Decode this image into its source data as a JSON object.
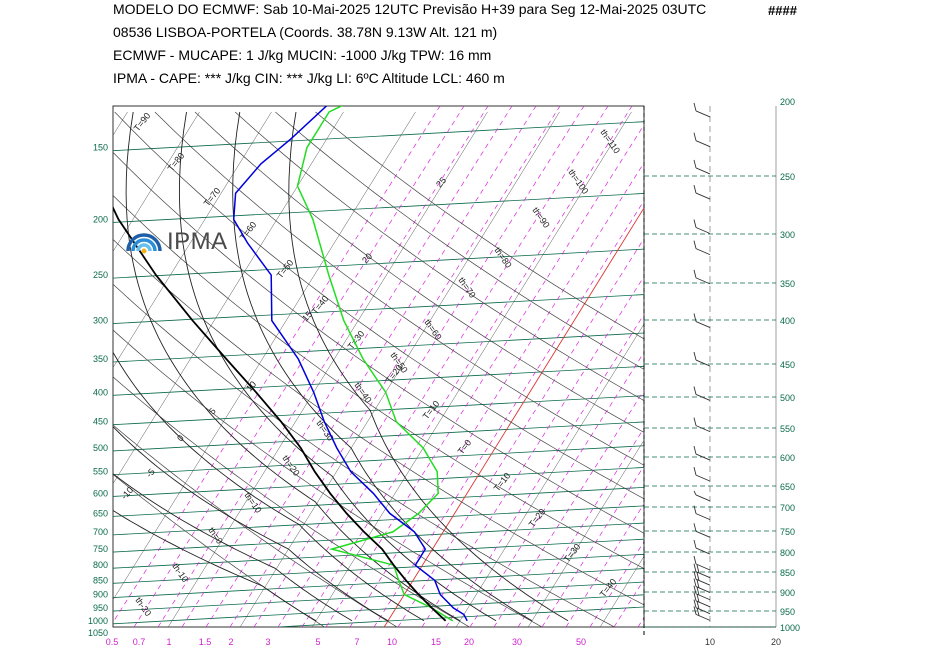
{
  "header": {
    "line1": "MODELO DO ECMWF:  Sab  10-Mai-2025 12UTC  Previsão H+39  para  Seg 12-Mai-2025 03UTC",
    "hash": "####",
    "line2": "08536   LISBOA-PORTELA  (Coords.  38.78N 9.13W   Alt. 121 m)",
    "line3": "ECMWF - MUCAPE: 1 J/kg   MUCIN: -1000 J/kg   TPW: 16 mm",
    "line4": "IPMA - CAPE: *** J/kg   CIN: *** J/kg   LI: 6ºC   Altitude LCL: 460 m"
  },
  "logo": {
    "text": "IPMA",
    "name": "ipma-logo"
  },
  "colors": {
    "isobar": "#0a6a4a",
    "temperature_profile": "#22dd22",
    "dewpoint_profile": "#0000dd",
    "parcel": "#000000",
    "mixing_ratio": "#dd22dd",
    "dry_adiabat": "#333333",
    "zero_isotherm": "#dd3333",
    "x_axis_labels": "#cc22cc",
    "y_axis_labels": "#0a6a4a"
  },
  "chart_data": {
    "type": "line",
    "title": "",
    "pressure_axis_left": [
      "150",
      "200",
      "250",
      "300",
      "350",
      "400",
      "450",
      "500",
      "550",
      "600",
      "650",
      "700",
      "750",
      "800",
      "850",
      "900",
      "950",
      "1000",
      "1050"
    ],
    "pressure_axis_right": [
      "200",
      "250",
      "300",
      "350",
      "400",
      "450",
      "500",
      "550",
      "600",
      "650",
      "700",
      "750",
      "800",
      "850",
      "900",
      "950",
      "1000"
    ],
    "mixing_ratio_axis": [
      "0.5",
      "0.7",
      "1",
      "1.5",
      "2",
      "3",
      "5",
      "7",
      "10",
      "15",
      "20",
      "30",
      "50"
    ],
    "wind_speed_axis": [
      "10",
      "20"
    ],
    "isotherm_labels": [
      "T=90",
      "T=80",
      "T=70",
      "T=60",
      "T=50",
      "T=40",
      "T=30",
      "T=20",
      "T=10",
      "T=0",
      "T=10",
      "T=20",
      "T=30",
      "T=40"
    ],
    "theta_labels": [
      "th=110",
      "th=100",
      "th=90",
      "th=80",
      "th=70",
      "th=60",
      "th=50",
      "th=40",
      "th=30",
      "th=20",
      "th=10",
      "th=0",
      "th-10",
      "th-20"
    ],
    "theta_e_labels": [
      "25",
      "20",
      "15",
      "10",
      "5",
      "0",
      "-5",
      "-10"
    ],
    "series": [
      {
        "name": "",
        "key": "temperature",
        "points": [
          [
            1000,
            9
          ],
          [
            975,
            7
          ],
          [
            950,
            5
          ],
          [
            900,
            0
          ],
          [
            850,
            -2
          ],
          [
            800,
            -4
          ],
          [
            750,
            -14
          ],
          [
            700,
            -7
          ],
          [
            650,
            -5
          ],
          [
            600,
            -4
          ],
          [
            550,
            -6
          ],
          [
            500,
            -10
          ],
          [
            450,
            -16
          ],
          [
            400,
            -20
          ],
          [
            350,
            -26
          ],
          [
            300,
            -32
          ],
          [
            250,
            -38
          ],
          [
            200,
            -45
          ],
          [
            175,
            -50
          ],
          [
            150,
            -52
          ],
          [
            130,
            -52
          ],
          [
            120,
            -48
          ]
        ]
      },
      {
        "name": "",
        "key": "dewpoint",
        "points": [
          [
            1000,
            11
          ],
          [
            975,
            10
          ],
          [
            950,
            8
          ],
          [
            900,
            5
          ],
          [
            850,
            3
          ],
          [
            800,
            -1
          ],
          [
            750,
            -1
          ],
          [
            700,
            -4
          ],
          [
            650,
            -9
          ],
          [
            600,
            -13
          ],
          [
            550,
            -18
          ],
          [
            500,
            -22
          ],
          [
            450,
            -26
          ],
          [
            400,
            -30
          ],
          [
            350,
            -35
          ],
          [
            300,
            -42
          ],
          [
            250,
            -46
          ],
          [
            220,
            -52
          ],
          [
            200,
            -56
          ],
          [
            180,
            -58
          ],
          [
            160,
            -57
          ],
          [
            145,
            -55
          ],
          [
            120,
            -52
          ]
        ]
      },
      {
        "name": "",
        "key": "parcel",
        "points": [
          [
            1000,
            8
          ],
          [
            950,
            5
          ],
          [
            900,
            2
          ],
          [
            850,
            -1
          ],
          [
            800,
            -4
          ],
          [
            750,
            -7
          ],
          [
            700,
            -11
          ],
          [
            650,
            -15
          ],
          [
            600,
            -19
          ],
          [
            550,
            -23
          ],
          [
            500,
            -27
          ],
          [
            450,
            -32
          ],
          [
            400,
            -38
          ],
          [
            350,
            -45
          ],
          [
            300,
            -53
          ],
          [
            250,
            -62
          ],
          [
            200,
            -72
          ],
          [
            180,
            -76
          ]
        ]
      }
    ],
    "wind_barbs": [
      {
        "p": 980,
        "speed_kt": 15
      },
      {
        "p": 960,
        "speed_kt": 15
      },
      {
        "p": 940,
        "speed_kt": 15
      },
      {
        "p": 920,
        "speed_kt": 15
      },
      {
        "p": 900,
        "speed_kt": 15
      },
      {
        "p": 880,
        "speed_kt": 15
      },
      {
        "p": 860,
        "speed_kt": 15
      },
      {
        "p": 840,
        "speed_kt": 10
      },
      {
        "p": 800,
        "speed_kt": 10
      },
      {
        "p": 760,
        "speed_kt": 10
      },
      {
        "p": 720,
        "speed_kt": 10
      },
      {
        "p": 680,
        "speed_kt": 5
      },
      {
        "p": 640,
        "speed_kt": 10
      },
      {
        "p": 600,
        "speed_kt": 10
      },
      {
        "p": 550,
        "speed_kt": 10
      },
      {
        "p": 500,
        "speed_kt": 10
      },
      {
        "p": 450,
        "speed_kt": 10
      },
      {
        "p": 400,
        "speed_kt": 10
      },
      {
        "p": 350,
        "speed_kt": 10
      },
      {
        "p": 320,
        "speed_kt": 10
      },
      {
        "p": 300,
        "speed_kt": 10
      },
      {
        "p": 270,
        "speed_kt": 10
      },
      {
        "p": 250,
        "speed_kt": 10
      },
      {
        "p": 230,
        "speed_kt": 10
      },
      {
        "p": 210,
        "speed_kt": 10
      }
    ]
  }
}
